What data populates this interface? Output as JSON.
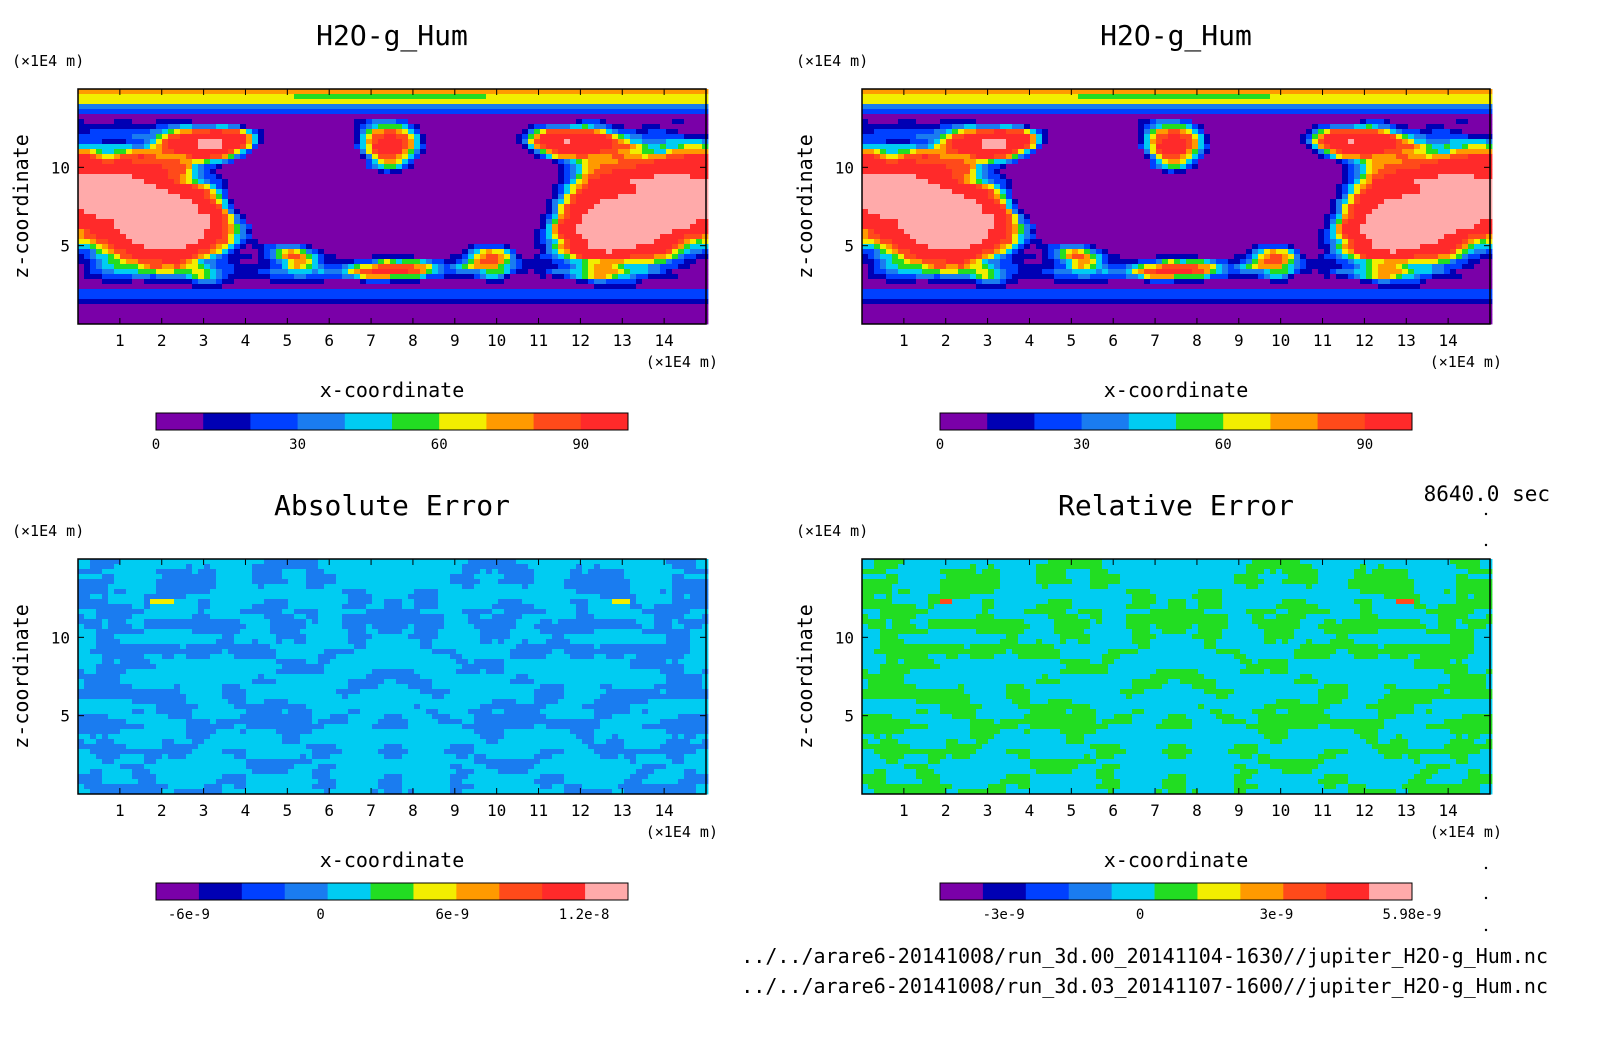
{
  "panels": [
    {
      "title": "H2O-g_Hum",
      "xlabel": "x-coordinate",
      "ylabel": "z-coordinate",
      "xunit": "(×1E4 m)",
      "yunit": "(×1E4 m)",
      "field": "humidity",
      "colorbar": {
        "colors": [
          "#7a00a8",
          "#0000b4",
          "#0040ff",
          "#1a7cf0",
          "#00ccf2",
          "#22dd22",
          "#f2ee00",
          "#ff9a00",
          "#ff4a1a",
          "#ff2a2a"
        ],
        "tick_labels": [
          "0",
          "30",
          "60",
          "90"
        ],
        "tick_values": [
          0,
          30,
          60,
          90
        ],
        "range": [
          0,
          100
        ]
      }
    },
    {
      "title": "H2O-g_Hum",
      "xlabel": "x-coordinate",
      "ylabel": "z-coordinate",
      "xunit": "(×1E4 m)",
      "yunit": "(×1E4 m)",
      "field": "humidity",
      "colorbar": {
        "colors": [
          "#7a00a8",
          "#0000b4",
          "#0040ff",
          "#1a7cf0",
          "#00ccf2",
          "#22dd22",
          "#f2ee00",
          "#ff9a00",
          "#ff4a1a",
          "#ff2a2a"
        ],
        "tick_labels": [
          "0",
          "30",
          "60",
          "90"
        ],
        "tick_values": [
          0,
          30,
          60,
          90
        ],
        "range": [
          0,
          100
        ]
      }
    },
    {
      "title": "Absolute Error",
      "xlabel": "x-coordinate",
      "ylabel": "z-coordinate",
      "xunit": "(×1E4 m)",
      "yunit": "(×1E4 m)",
      "field": "abs_error",
      "colorbar": {
        "colors": [
          "#7a00a8",
          "#0000b4",
          "#0040ff",
          "#1a7cf0",
          "#00ccf2",
          "#22dd22",
          "#f2ee00",
          "#ff9a00",
          "#ff4a1a",
          "#ff2a2a",
          "#ffaaaa"
        ],
        "tick_labels": [
          "-6e-9",
          "0",
          "6e-9",
          "1.2e-8"
        ],
        "tick_values": [
          -6e-09,
          0,
          6e-09,
          1.2e-08
        ],
        "range": [
          -7.5e-09,
          1.4e-08
        ]
      }
    },
    {
      "title": "Relative Error",
      "xlabel": "x-coordinate",
      "ylabel": "z-coordinate",
      "xunit": "(×1E4 m)",
      "yunit": "(×1E4 m)",
      "field": "rel_error",
      "colorbar": {
        "colors": [
          "#7a00a8",
          "#0000b4",
          "#0040ff",
          "#1a7cf0",
          "#00ccf2",
          "#22dd22",
          "#f2ee00",
          "#ff9a00",
          "#ff4a1a",
          "#ff2a2a",
          "#ffaaaa"
        ],
        "tick_labels": [
          "-3e-9",
          "0",
          "3e-9",
          "5.98e-9"
        ],
        "tick_values": [
          -3e-09,
          0,
          3e-09,
          5.98e-09
        ],
        "range": [
          -4.4e-09,
          5.98e-09
        ]
      }
    }
  ],
  "time_label": "8640.0 sec",
  "file_paths": [
    "../../arare6-20141008/run_3d.00_20141104-1630//jupiter_H2O-g_Hum.nc",
    "../../arare6-20141008/run_3d.03_20141107-1600//jupiter_H2O-g_Hum.nc"
  ],
  "chart_data": [
    {
      "type": "heatmap",
      "title": "H2O-g_Hum",
      "xlabel": "x-coordinate",
      "ylabel": "z-coordinate",
      "x_unit": "(×1E4 m)",
      "y_unit": "(×1E4 m)",
      "xlim": [
        0,
        15
      ],
      "ylim": [
        0,
        15
      ],
      "x_ticks": [
        1,
        2,
        3,
        4,
        5,
        6,
        7,
        8,
        9,
        10,
        11,
        12,
        13,
        14
      ],
      "y_ticks": [
        5,
        10
      ],
      "colorbar_range": [
        0,
        100
      ],
      "colorbar_ticks": [
        0,
        30,
        60,
        90
      ]
    },
    {
      "type": "heatmap",
      "title": "H2O-g_Hum",
      "xlabel": "x-coordinate",
      "ylabel": "z-coordinate",
      "x_unit": "(×1E4 m)",
      "y_unit": "(×1E4 m)",
      "xlim": [
        0,
        15
      ],
      "ylim": [
        0,
        15
      ],
      "x_ticks": [
        1,
        2,
        3,
        4,
        5,
        6,
        7,
        8,
        9,
        10,
        11,
        12,
        13,
        14
      ],
      "y_ticks": [
        5,
        10
      ],
      "colorbar_range": [
        0,
        100
      ],
      "colorbar_ticks": [
        0,
        30,
        60,
        90
      ]
    },
    {
      "type": "heatmap",
      "title": "Absolute Error",
      "xlabel": "x-coordinate",
      "ylabel": "z-coordinate",
      "x_unit": "(×1E4 m)",
      "y_unit": "(×1E4 m)",
      "xlim": [
        0,
        15
      ],
      "ylim": [
        0,
        15
      ],
      "x_ticks": [
        1,
        2,
        3,
        4,
        5,
        6,
        7,
        8,
        9,
        10,
        11,
        12,
        13,
        14
      ],
      "y_ticks": [
        5,
        10
      ],
      "colorbar_ticks": [
        "-6e-9",
        "0",
        "6e-9",
        "1.2e-8"
      ]
    },
    {
      "type": "heatmap",
      "title": "Relative Error",
      "xlabel": "x-coordinate",
      "ylabel": "z-coordinate",
      "x_unit": "(×1E4 m)",
      "y_unit": "(×1E4 m)",
      "xlim": [
        0,
        15
      ],
      "ylim": [
        0,
        15
      ],
      "x_ticks": [
        1,
        2,
        3,
        4,
        5,
        6,
        7,
        8,
        9,
        10,
        11,
        12,
        13,
        14
      ],
      "y_ticks": [
        5,
        10
      ],
      "colorbar_ticks": [
        "-3e-9",
        "0",
        "3e-9",
        "5.98e-9"
      ]
    }
  ]
}
